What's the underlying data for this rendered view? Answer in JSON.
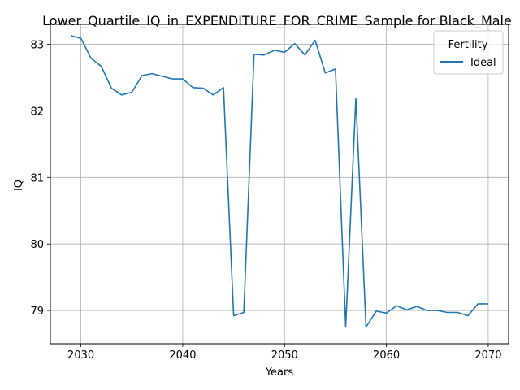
{
  "chart_data": {
    "type": "line",
    "title": "Lower_Quartile_IQ_in_EXPENDITURE_FOR_CRIME_Sample for Black_Male",
    "xlabel": "Years",
    "ylabel": "IQ",
    "xlim": [
      2027,
      2072
    ],
    "ylim": [
      78.5,
      83.3
    ],
    "xticks": [
      2030,
      2040,
      2050,
      2060,
      2070
    ],
    "yticks": [
      79,
      80,
      81,
      82,
      83
    ],
    "grid": true,
    "legend": {
      "title": "Fertility",
      "placement": "top-right"
    },
    "series": [
      {
        "name": "Ideal",
        "color": "#1f77b4",
        "x": [
          2029,
          2030,
          2031,
          2032,
          2033,
          2034,
          2035,
          2036,
          2037,
          2038,
          2039,
          2040,
          2041,
          2042,
          2043,
          2044,
          2045,
          2046,
          2047,
          2048,
          2049,
          2050,
          2051,
          2052,
          2053,
          2054,
          2055,
          2056,
          2057,
          2058,
          2059,
          2060,
          2061,
          2062,
          2063,
          2064,
          2065,
          2066,
          2067,
          2068,
          2069,
          2070
        ],
        "values": [
          83.13,
          83.09,
          82.79,
          82.67,
          82.34,
          82.24,
          82.28,
          82.53,
          82.56,
          82.52,
          82.48,
          82.48,
          82.35,
          82.34,
          82.24,
          82.35,
          78.92,
          78.97,
          82.85,
          82.84,
          82.91,
          82.88,
          83.01,
          82.84,
          83.06,
          82.57,
          82.63,
          78.75,
          82.19,
          78.75,
          78.99,
          78.96,
          79.07,
          79.01,
          79.06,
          79.0,
          79.0,
          78.97,
          78.97,
          78.92,
          79.1,
          79.1
        ]
      }
    ]
  }
}
